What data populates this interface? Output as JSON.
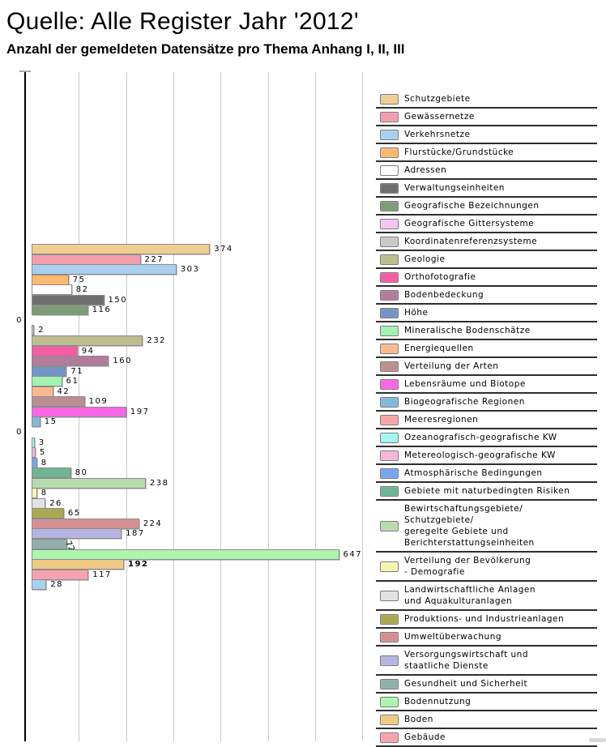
{
  "chart_data": {
    "type": "bar",
    "orientation": "horizontal",
    "title": "Quelle: Alle Register Jahr '2012'",
    "subtitle": "Anzahl der gemeldeten Datensätze pro Thema Anhang I, II, III",
    "grid": true,
    "legend_position": "right",
    "x_axis": {
      "min": 0,
      "gridline_step": 100,
      "gridlines_shown": [
        100,
        200,
        300,
        400,
        500,
        600,
        700
      ],
      "tick_labels_visible": false
    },
    "items": [
      {
        "label": "Schutzgebiete",
        "value": 374,
        "color": "#F0CE92"
      },
      {
        "label": "Gewässernetze",
        "value": 227,
        "color": "#F49EAD"
      },
      {
        "label": "Verkehrsnetze",
        "value": 303,
        "color": "#A9D0EE"
      },
      {
        "label": "Flurstücke/Grundstücke",
        "value": 75,
        "color": "#FBB96F"
      },
      {
        "label": "Adressen",
        "value": 82,
        "color": "#FFFFFF"
      },
      {
        "label": "Verwaltungseinheiten",
        "value": 150,
        "color": "#6E6E6E"
      },
      {
        "label": "Geografische Bezeichnungen",
        "value": 116,
        "color": "#7E9D77"
      },
      {
        "label": "Geografische Gittersysteme",
        "value": 0,
        "color": "#F6C4F3"
      },
      {
        "label": "Koordinatenreferenzsysteme",
        "value": 2,
        "color": "#C9C9C9"
      },
      {
        "label": "Geologie",
        "value": 232,
        "color": "#BFBC8F"
      },
      {
        "label": "Orthofotografie",
        "value": 94,
        "color": "#F65CA4"
      },
      {
        "label": "Bodenbedeckung",
        "value": 160,
        "color": "#B27C9D"
      },
      {
        "label": "Höhe",
        "value": 71,
        "color": "#7394C5"
      },
      {
        "label": "Mineralische Bodenschätze",
        "value": 61,
        "color": "#A3F3B0"
      },
      {
        "label": "Energiequellen",
        "value": 42,
        "color": "#FBBA8E"
      },
      {
        "label": "Verteilung der Arten",
        "value": 109,
        "color": "#BB8F92"
      },
      {
        "label": "Lebensräume und Biotope",
        "value": 197,
        "color": "#F966E6"
      },
      {
        "label": "Biogeografische Regionen",
        "value": 15,
        "color": "#84B9DD"
      },
      {
        "label": "Meeresregionen",
        "value": 0,
        "color": "#F5A7A7"
      },
      {
        "label": "Ozeanografisch-geografische KW",
        "value": 3,
        "color": "#A2F8F0"
      },
      {
        "label": "Metereologisch-geografische KW",
        "value": 5,
        "color": "#F8B6D7"
      },
      {
        "label": "Atmosphärische Bedingungen",
        "value": 8,
        "color": "#76A5F3"
      },
      {
        "label": "Gebiete mit naturbedingten Risiken",
        "value": 80,
        "color": "#6FB493"
      },
      {
        "label": "Bewirtschaftungsgebiete/\nSchutzgebiete/\ngeregelte Gebiete und\nBerichterstattungseinheiten",
        "value": 238,
        "color": "#B7DBAD"
      },
      {
        "label": "Verteilung der Bevölkerung\n- Demografie",
        "value": 8,
        "color": "#F8F6AE"
      },
      {
        "label": "Landwirtschaftliche Anlagen\nund Aquakulturanlagen",
        "value": 26,
        "color": "#E2E2E2"
      },
      {
        "label": "Produktions- und Industrieanlagen",
        "value": 65,
        "color": "#ABA850"
      },
      {
        "label": "Umweltüberwachung",
        "value": 224,
        "color": "#D49090"
      },
      {
        "label": "Versorgungswirtschaft und\nstaatliche Dienste",
        "value": 187,
        "color": "#B6B5E1"
      },
      {
        "label": "Gesundheit und Sicherheit",
        "value": 72,
        "color": "#8FB0AB",
        "value_label_style": "rotated"
      },
      {
        "label": "Bodennutzung",
        "value": 647,
        "color": "#ADF5AD"
      },
      {
        "label": "Boden",
        "value": 192,
        "color": "#F0C985",
        "value_label_style": "bold"
      },
      {
        "label": "Gebäude",
        "value": 117,
        "color": "#F7A3AF"
      },
      {
        "label": "",
        "value": 28,
        "color": "#A7D3F2"
      }
    ]
  }
}
